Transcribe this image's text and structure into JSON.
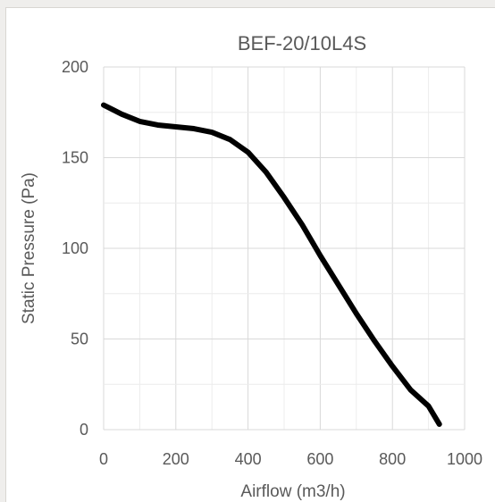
{
  "chart_data": {
    "type": "line",
    "title": "BEF-20/10L4S",
    "xlabel": "Airflow (m3/h)",
    "ylabel": "Static Pressure (Pa)",
    "xlim": [
      0,
      1000
    ],
    "ylim": [
      0,
      200
    ],
    "x_ticks": [
      "0",
      "200",
      "400",
      "600",
      "800",
      "1000"
    ],
    "y_ticks": [
      "0",
      "50",
      "100",
      "150",
      "200"
    ],
    "grid": true,
    "series": [
      {
        "color": "#000000",
        "x": [
          0,
          50,
          100,
          150,
          200,
          250,
          300,
          350,
          400,
          450,
          500,
          550,
          600,
          650,
          700,
          750,
          800,
          850,
          900,
          930
        ],
        "y": [
          179,
          174,
          170,
          168,
          167,
          166,
          164,
          160,
          153,
          142,
          128,
          113,
          96,
          80,
          64,
          49,
          35,
          22,
          13,
          3
        ]
      }
    ]
  }
}
